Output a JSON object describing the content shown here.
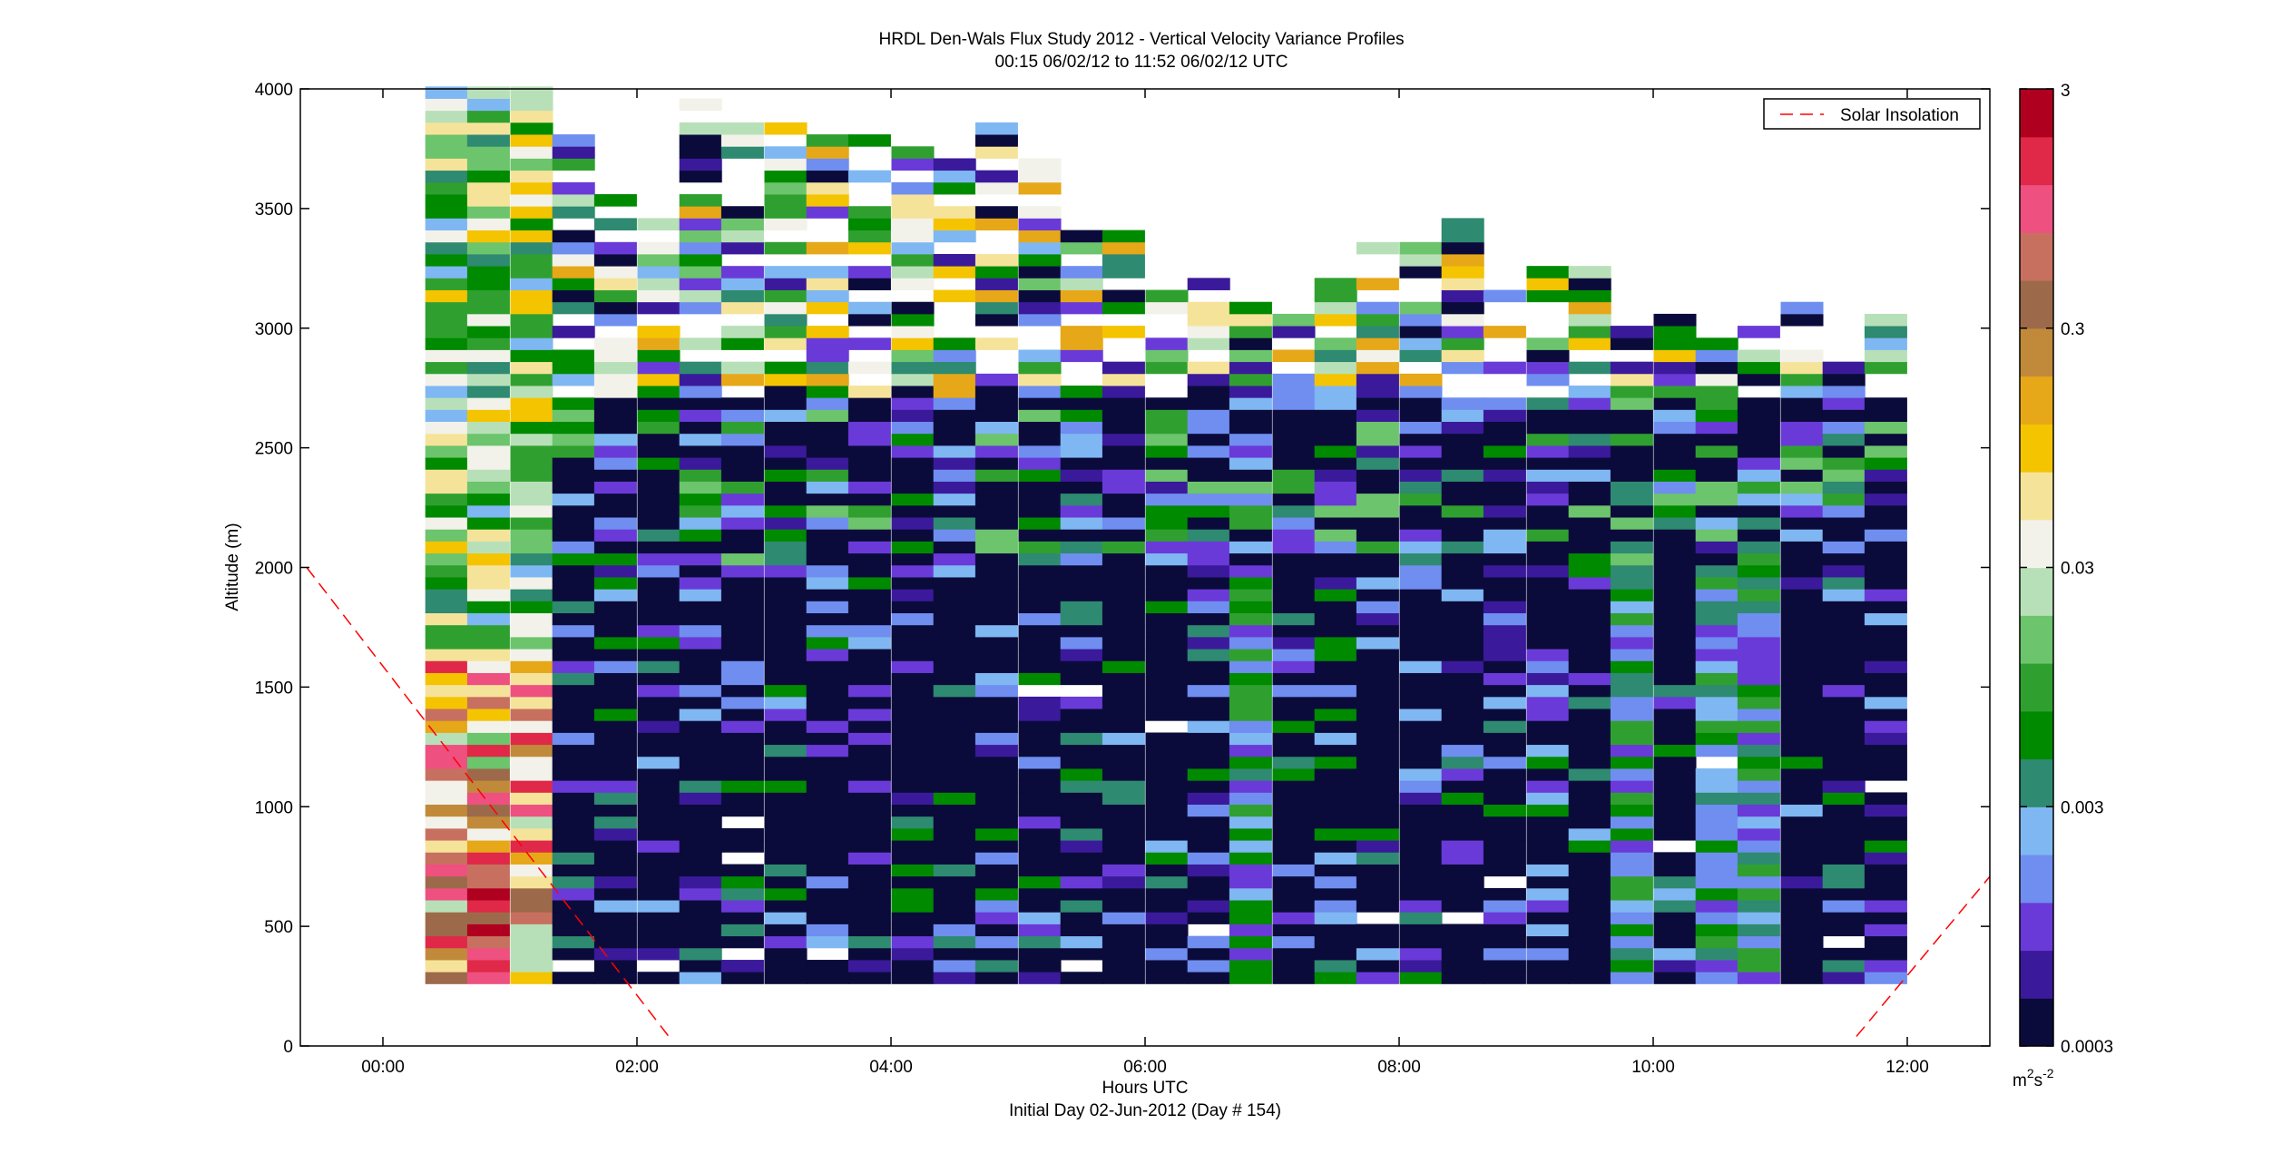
{
  "chart_data": {
    "type": "heatmap",
    "title": "HRDL Den-Wals Flux Study 2012 - Vertical Velocity Variance Profiles",
    "subtitle": "00:15 06/02/12 to 11:52 06/02/12  UTC",
    "xlabel": "Hours UTC",
    "xlabel2": "Initial Day 02-Jun-2012 (Day # 154)",
    "ylabel": "Altitude (m)",
    "xlim": [
      -0.65,
      12.65
    ],
    "ylim": [
      0,
      4000
    ],
    "x_ticks": [
      0,
      2,
      4,
      6,
      8,
      10,
      12
    ],
    "x_tick_labels": [
      "00:00",
      "02:00",
      "04:00",
      "06:00",
      "08:00",
      "10:00",
      "12:00"
    ],
    "y_ticks": [
      0,
      500,
      1000,
      1500,
      2000,
      2500,
      3000,
      3500,
      4000
    ],
    "y_tick_labels": [
      "0",
      "500",
      "1000",
      "1500",
      "2000",
      "2500",
      "3000",
      "3500",
      "4000"
    ],
    "colorbar": {
      "scale": "log",
      "range": [
        0.0003,
        3
      ],
      "tick_values": [
        0.0003,
        0.003,
        0.03,
        0.3,
        3
      ],
      "tick_labels": [
        "0.0003",
        "0.003",
        "0.03",
        "0.3",
        "3"
      ],
      "unit_base": "m",
      "unit_sup1": "2",
      "unit_mid": "s",
      "unit_sup2": "-2"
    },
    "legend": {
      "entries": [
        "Solar Insolation"
      ],
      "placement": "top-right",
      "line_color": "#ff0000",
      "line_style": "dashed"
    },
    "solar_insolation": {
      "x": [
        -0.6,
        2.25,
        11.6,
        12.7
      ],
      "y": [
        2000,
        40,
        40,
        740
      ],
      "segments": [
        [
          0,
          1
        ],
        [
          2,
          3
        ]
      ]
    },
    "colormap": [
      "#0b0b3b",
      "#3a1a9a",
      "#6a3ad8",
      "#6f8ef0",
      "#7fb7f2",
      "#2e8a70",
      "#008a00",
      "#2fa02f",
      "#6cc46c",
      "#b8e0b8",
      "#f2f2ea",
      "#f6e39a",
      "#f4c400",
      "#e6a818",
      "#c08a3a",
      "#9c6a4a",
      "#c87060",
      "#ee5080",
      "#e02848",
      "#b00020"
    ],
    "bin_width_hours": 0.333,
    "gate_altitude_m": 50,
    "min_altitude_m": 260,
    "profile_times_hours": [
      0.5,
      0.83,
      1.17,
      1.5,
      1.83,
      2.17,
      2.5,
      2.83,
      3.17,
      3.5,
      3.83,
      4.17,
      4.5,
      4.83,
      5.17,
      5.5,
      5.83,
      6.17,
      6.5,
      6.83,
      7.17,
      7.5,
      7.83,
      8.17,
      8.5,
      8.83,
      9.17,
      9.5,
      9.83,
      10.17,
      10.5,
      10.83,
      11.17,
      11.5,
      11.83
    ],
    "profile_tops_m": [
      4000,
      4000,
      4000,
      3950,
      3550,
      3450,
      3950,
      3850,
      3850,
      4000,
      3800,
      3750,
      3800,
      3900,
      3700,
      3400,
      3400,
      3250,
      3200,
      3150,
      3050,
      3250,
      3350,
      3350,
      3450,
      3150,
      3250,
      3250,
      3000,
      3050,
      2950,
      3000,
      3100,
      2850,
      3050
    ]
  }
}
